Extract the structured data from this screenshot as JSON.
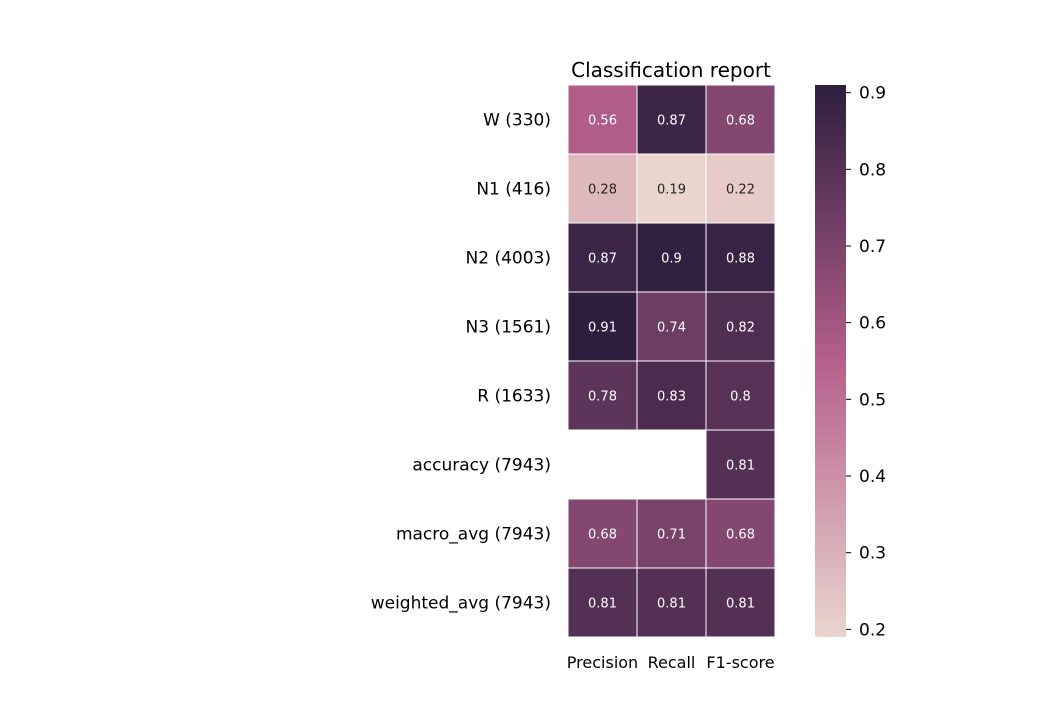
{
  "chart_data": {
    "type": "heatmap",
    "title": "Classification report",
    "rows": [
      "W (330)",
      "N1 (416)",
      "N2 (4003)",
      "N3 (1561)",
      "R (1633)",
      "accuracy (7943)",
      "macro_avg (7943)",
      "weighted_avg (7943)"
    ],
    "columns": [
      "Precision",
      "Recall",
      "F1-score"
    ],
    "values": [
      [
        0.56,
        0.87,
        0.68
      ],
      [
        0.28,
        0.19,
        0.22
      ],
      [
        0.87,
        0.9,
        0.88
      ],
      [
        0.91,
        0.74,
        0.82
      ],
      [
        0.78,
        0.83,
        0.8
      ],
      [
        null,
        null,
        0.81
      ],
      [
        0.68,
        0.71,
        0.68
      ],
      [
        0.81,
        0.81,
        0.81
      ]
    ],
    "colorbar": {
      "range": [
        0.19,
        0.91
      ],
      "ticks": [
        0.2,
        0.3,
        0.4,
        0.5,
        0.6,
        0.7,
        0.8,
        0.9
      ],
      "colors": [
        "#ead5cd",
        "#b55f8c",
        "#2d1e3e"
      ]
    }
  }
}
